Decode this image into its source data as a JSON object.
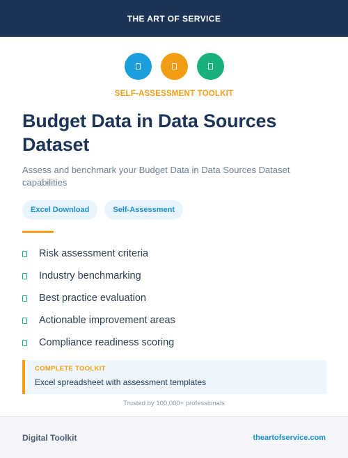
{
  "header": {
    "brand": "THE ART OF SERVICE"
  },
  "icons": [
    {
      "name": "document-icon",
      "color": "#1a9fdc"
    },
    {
      "name": "document-icon",
      "color": "#f29d14"
    },
    {
      "name": "document-icon",
      "color": "#19b07f"
    }
  ],
  "kicker": "SELF-ASSESSMENT TOOLKIT",
  "title": "Budget Data in Data Sources Dataset",
  "subtitle": "Assess and benchmark your Budget Data in Data Sources Dataset capabilities",
  "tags": [
    "Excel Download",
    "Self-Assessment"
  ],
  "features": [
    "Risk assessment criteria",
    "Industry benchmarking",
    "Best practice evaluation",
    "Actionable improvement areas",
    "Compliance readiness scoring"
  ],
  "callout": {
    "title": "COMPLETE TOOLKIT",
    "text": "Excel spreadsheet with assessment templates"
  },
  "trusted": "Trusted by 100,000+ professionals",
  "footer": {
    "left": "Digital Toolkit",
    "right": "theartofservice.com"
  },
  "colors": {
    "navy": "#1c3557",
    "orange": "#f29d14",
    "blue": "#1a9fdc",
    "green": "#19b07f"
  }
}
